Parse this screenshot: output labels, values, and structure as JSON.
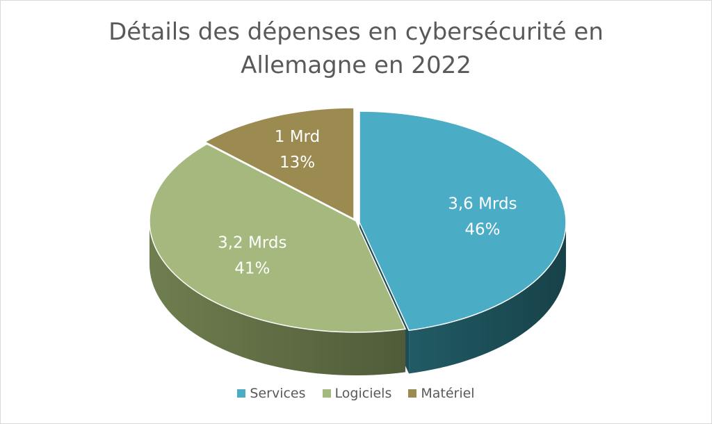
{
  "chart_data": {
    "type": "pie",
    "title_lines": [
      "Détails des dépenses en cybersécurité en",
      "Allemagne en 2022"
    ],
    "slices": [
      {
        "name": "Services",
        "value": 3.6,
        "percent": 46,
        "value_label": "3,6 Mrds",
        "percent_label": "46%",
        "color": "#4bacc6",
        "side_color": "#215b65"
      },
      {
        "name": "Logiciels",
        "value": 3.2,
        "percent": 41,
        "value_label": "3,2 Mrds",
        "percent_label": "41%",
        "color": "#a5b97e",
        "side_color": "#6f7e4f"
      },
      {
        "name": "Matériel",
        "value": 1.0,
        "percent": 13,
        "value_label": "1 Mrd",
        "percent_label": "13%",
        "color": "#9c8b50",
        "side_color": "#5f5430"
      }
    ],
    "legend_position": "bottom"
  }
}
